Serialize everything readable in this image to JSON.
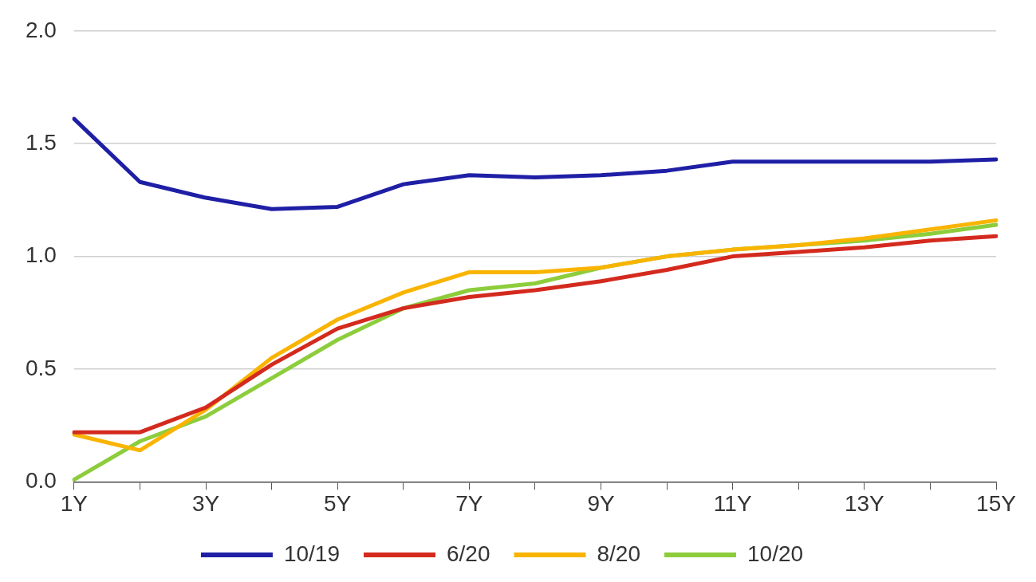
{
  "chart_data": {
    "type": "line",
    "categories": [
      "1Y",
      null,
      "3Y",
      null,
      "5Y",
      null,
      "7Y",
      null,
      "9Y",
      null,
      "11Y",
      null,
      "13Y",
      null,
      "15Y"
    ],
    "series": [
      {
        "name": "10/19",
        "color": "#1f1fa6",
        "values": [
          1.61,
          1.33,
          1.26,
          1.21,
          1.22,
          1.32,
          1.36,
          1.35,
          1.36,
          1.38,
          1.42,
          1.42,
          1.42,
          1.42,
          1.43
        ]
      },
      {
        "name": "6/20",
        "color": "#d42a1e",
        "values": [
          0.22,
          0.22,
          0.33,
          0.52,
          0.68,
          0.77,
          0.82,
          0.85,
          0.89,
          0.94,
          1.0,
          1.02,
          1.04,
          1.07,
          1.09
        ]
      },
      {
        "name": "8/20",
        "color": "#f9b400",
        "values": [
          0.21,
          0.14,
          0.32,
          0.55,
          0.72,
          0.84,
          0.93,
          0.93,
          0.95,
          1.0,
          1.03,
          1.05,
          1.08,
          1.12,
          1.16
        ]
      },
      {
        "name": "10/20",
        "color": "#8dcd3c",
        "values": [
          0.01,
          0.18,
          0.29,
          0.46,
          0.63,
          0.77,
          0.85,
          0.88,
          0.95,
          1.0,
          1.03,
          1.05,
          1.07,
          1.1,
          1.14
        ]
      }
    ],
    "ylim": [
      0,
      2
    ],
    "yticks": [
      {
        "value": 0,
        "label": "0.0"
      },
      {
        "value": 0.5,
        "label": "0.5"
      },
      {
        "value": 1,
        "label": "1.0"
      },
      {
        "value": 1.5,
        "label": "1.5"
      },
      {
        "value": 2,
        "label": "2.0"
      }
    ],
    "grid": "y",
    "legend": "bottom",
    "marker": "none",
    "line_style": "solid"
  }
}
